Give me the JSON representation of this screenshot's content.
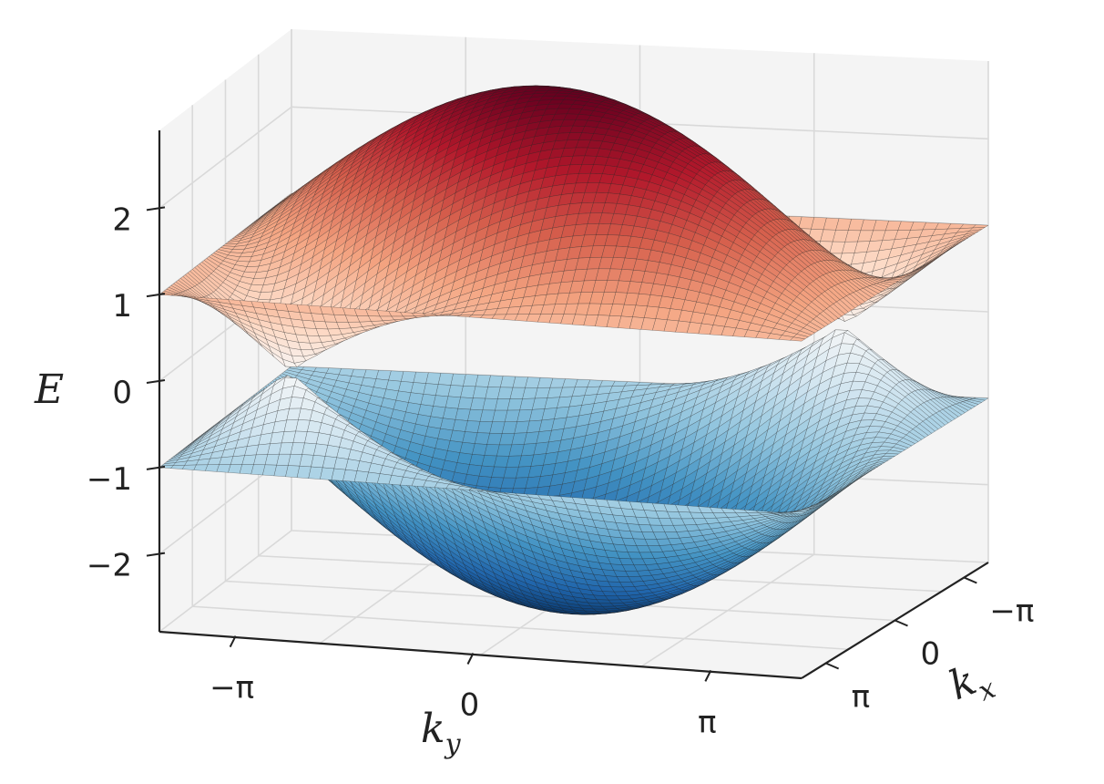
{
  "chart_data": {
    "type": "surface3d",
    "title": "",
    "xlabel": "k_x",
    "ylabel": "k_y",
    "zlabel": "E",
    "x_ticks": [
      {
        "value": -3.14159,
        "label": "−π"
      },
      {
        "value": 0,
        "label": "0"
      },
      {
        "value": 3.14159,
        "label": "π"
      }
    ],
    "y_ticks": [
      {
        "value": -3.14159,
        "label": "−π"
      },
      {
        "value": 0,
        "label": "0"
      },
      {
        "value": 3.14159,
        "label": "π"
      }
    ],
    "z_ticks": [
      {
        "value": 2,
        "label": "2"
      },
      {
        "value": 1,
        "label": "1"
      },
      {
        "value": 0,
        "label": "0"
      },
      {
        "value": -1,
        "label": "−1"
      },
      {
        "value": -2,
        "label": "−2"
      }
    ],
    "xlim": [
      -3.14159,
      3.14159
    ],
    "ylim": [
      -3.14159,
      3.14159
    ],
    "zlim": [
      -2.9,
      2.9
    ],
    "grid": true,
    "colormap": "RdBu_r",
    "colormap_stops": [
      "#053061",
      "#2166ac",
      "#4393c3",
      "#92c5de",
      "#d1e5f0",
      "#f7f7f7",
      "#fddbc7",
      "#f4a582",
      "#d6604d",
      "#b2182b",
      "#67001f"
    ],
    "series": [
      {
        "values": "E = +sqrt(3 + 2cos(kx) + 2cos(ky) + 2cos(kx+ky))",
        "range": [
          0,
          3
        ]
      },
      {
        "values": "E = −sqrt(3 + 2cos(kx) + 2cos(ky) + 2cos(kx+ky))",
        "range": [
          -3,
          0
        ]
      }
    ],
    "pane_color": "#f4f4f4",
    "grid_color": "#d9d9d9",
    "edge_color": "#222222"
  }
}
